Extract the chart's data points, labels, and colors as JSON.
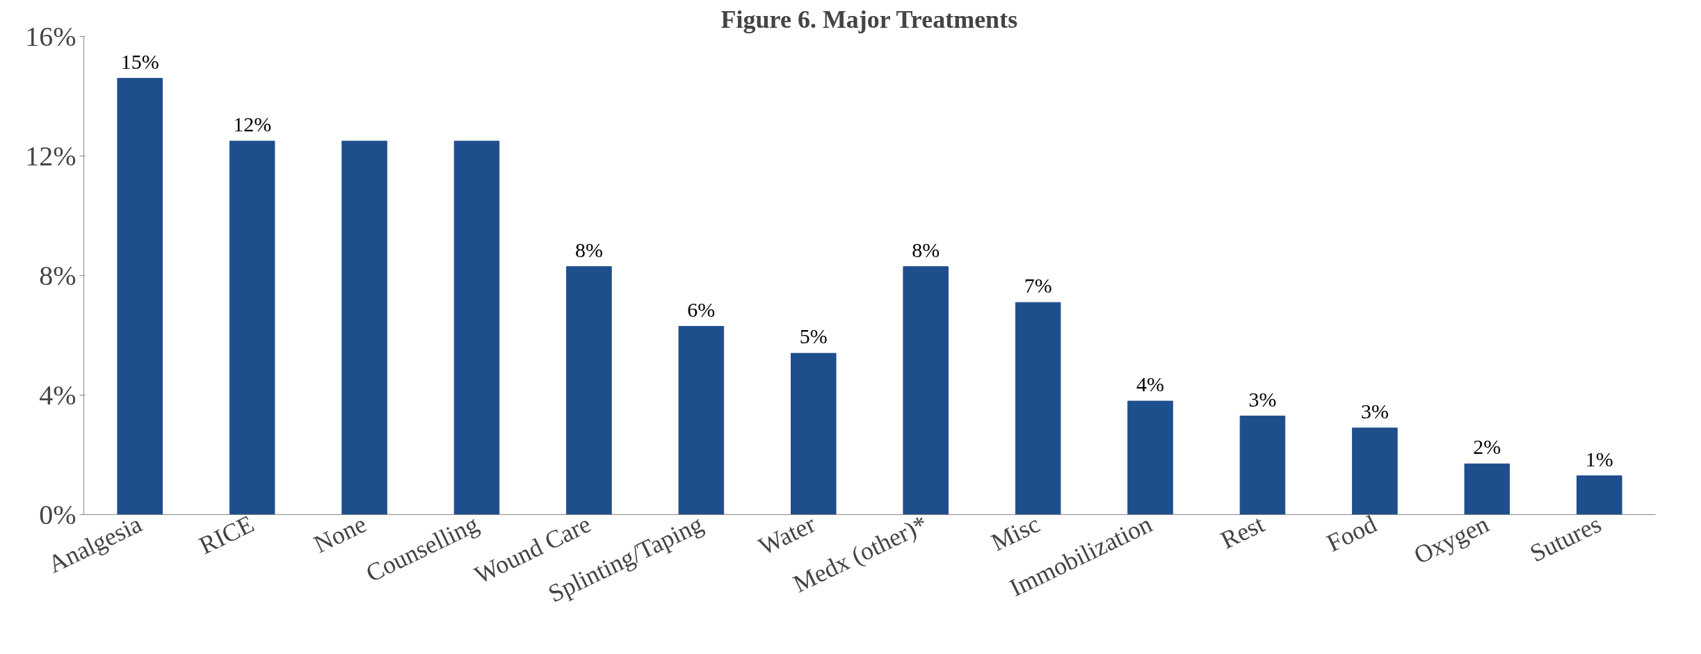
{
  "chart_data": {
    "type": "bar",
    "title": "Figure 6. Major Treatments",
    "categories": [
      "Analgesia",
      "RICE",
      "None",
      "Counselling",
      "Wound Care",
      "Splinting/Taping",
      "Water",
      "Medx (other)*",
      "Misc",
      "Immobilization",
      "Rest",
      "Food",
      "Oxygen",
      "Sutures"
    ],
    "values": [
      14.6,
      12.5,
      12.5,
      12.5,
      8.3,
      6.3,
      5.4,
      8.3,
      7.1,
      3.8,
      3.3,
      2.9,
      1.7,
      1.3
    ],
    "value_labels": [
      "15%",
      "12%",
      null,
      null,
      "8%",
      "6%",
      "5%",
      "8%",
      "7%",
      "4%",
      "3%",
      "3%",
      "2%",
      "1%"
    ],
    "color": "#1f4e8c",
    "ylim": [
      0,
      16
    ],
    "yticks": [
      {
        "value": 0,
        "label": "0%"
      },
      {
        "value": 4,
        "label": "4%"
      },
      {
        "value": 8,
        "label": "8%"
      },
      {
        "value": 12,
        "label": "12%"
      },
      {
        "value": 16,
        "label": "16%"
      }
    ],
    "grid": false
  }
}
